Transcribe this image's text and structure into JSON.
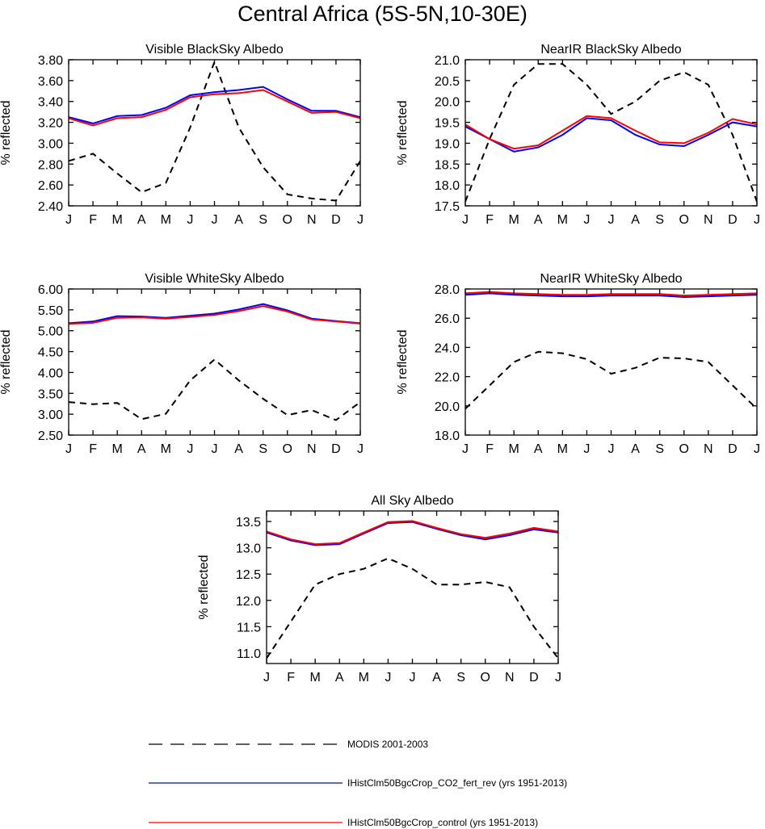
{
  "page_title": "Central Africa (5S-5N,10-30E)",
  "legend": {
    "entries": [
      {
        "label": "MODIS 2001-2003",
        "color": "#000000",
        "dash": true
      },
      {
        "label": "IHistClm50BgcCrop_CO2_fert_rev (yrs 1951-2013)",
        "color": "#0000ff",
        "dash": false
      },
      {
        "label": "IHistClm50BgcCrop_control (yrs 1951-2013)",
        "color": "#ff0000",
        "dash": false
      }
    ]
  },
  "colors": {
    "modis": "#000000",
    "co2_fert_rev": "#0000ff",
    "control": "#ff0000"
  },
  "chart_data": [
    {
      "type": "line",
      "title": "Visible BlackSky Albedo",
      "ylabel": "% reflected",
      "categories": [
        "J",
        "F",
        "M",
        "A",
        "M",
        "J",
        "J",
        "A",
        "S",
        "O",
        "N",
        "D",
        "J"
      ],
      "ylim": [
        2.4,
        3.8
      ],
      "yticks": [
        "2.40",
        "2.60",
        "2.80",
        "3.00",
        "3.20",
        "3.40",
        "3.60",
        "3.80"
      ],
      "series": [
        {
          "name": "MODIS 2001-2003",
          "values": [
            2.83,
            2.9,
            2.71,
            2.53,
            2.62,
            3.15,
            3.78,
            3.15,
            2.77,
            2.51,
            2.47,
            2.45,
            2.83
          ]
        },
        {
          "name": "IHistClm50BgcCrop_CO2_fert_rev (yrs 1951-2013)",
          "values": [
            3.25,
            3.19,
            3.26,
            3.27,
            3.34,
            3.46,
            3.49,
            3.51,
            3.54,
            3.42,
            3.31,
            3.31,
            3.25
          ]
        },
        {
          "name": "IHistClm50BgcCrop_control (yrs 1951-2013)",
          "values": [
            3.24,
            3.17,
            3.24,
            3.25,
            3.32,
            3.44,
            3.47,
            3.48,
            3.51,
            3.4,
            3.29,
            3.3,
            3.24
          ]
        }
      ]
    },
    {
      "type": "line",
      "title": "NearIR BlackSky Albedo",
      "ylabel": "% reflected",
      "categories": [
        "J",
        "F",
        "M",
        "A",
        "M",
        "J",
        "J",
        "A",
        "S",
        "O",
        "N",
        "D",
        "J"
      ],
      "ylim": [
        17.5,
        21.0
      ],
      "yticks": [
        "17.5",
        "18.0",
        "18.5",
        "19.0",
        "19.5",
        "20.0",
        "20.5",
        "21.0"
      ],
      "series": [
        {
          "name": "MODIS 2001-2003",
          "values": [
            17.6,
            19.1,
            20.4,
            20.9,
            20.9,
            20.4,
            19.7,
            20.0,
            20.5,
            20.7,
            20.4,
            19.2,
            17.6
          ]
        },
        {
          "name": "IHistClm50BgcCrop_CO2_fert_rev (yrs 1951-2013)",
          "values": [
            19.4,
            19.1,
            18.8,
            18.9,
            19.2,
            19.6,
            19.55,
            19.2,
            18.97,
            18.93,
            19.2,
            19.5,
            19.4
          ]
        },
        {
          "name": "IHistClm50BgcCrop_control (yrs 1951-2013)",
          "values": [
            19.45,
            19.1,
            18.87,
            18.95,
            19.3,
            19.65,
            19.6,
            19.3,
            19.02,
            19.0,
            19.25,
            19.58,
            19.45
          ]
        }
      ]
    },
    {
      "type": "line",
      "title": "Visible WhiteSky Albedo",
      "ylabel": "% reflected",
      "categories": [
        "J",
        "F",
        "M",
        "A",
        "M",
        "J",
        "J",
        "A",
        "S",
        "O",
        "N",
        "D",
        "J"
      ],
      "ylim": [
        2.5,
        6.0
      ],
      "yticks": [
        "2.50",
        "3.00",
        "3.50",
        "4.00",
        "4.50",
        "5.00",
        "5.50",
        "6.00"
      ],
      "series": [
        {
          "name": "MODIS 2001-2003",
          "values": [
            3.29,
            3.24,
            3.27,
            2.88,
            3.01,
            3.81,
            4.31,
            3.81,
            3.37,
            2.98,
            3.1,
            2.86,
            3.29
          ]
        },
        {
          "name": "IHistClm50BgcCrop_CO2_fert_rev (yrs 1951-2013)",
          "values": [
            5.18,
            5.22,
            5.35,
            5.34,
            5.31,
            5.36,
            5.41,
            5.51,
            5.64,
            5.49,
            5.29,
            5.23,
            5.18
          ]
        },
        {
          "name": "IHistClm50BgcCrop_control (yrs 1951-2013)",
          "values": [
            5.16,
            5.19,
            5.31,
            5.32,
            5.29,
            5.33,
            5.38,
            5.47,
            5.59,
            5.46,
            5.27,
            5.22,
            5.17
          ]
        }
      ]
    },
    {
      "type": "line",
      "title": "NearIR WhiteSky Albedo",
      "ylabel": "% reflected",
      "categories": [
        "J",
        "F",
        "M",
        "A",
        "M",
        "J",
        "J",
        "A",
        "S",
        "O",
        "N",
        "D",
        "J"
      ],
      "ylim": [
        18.0,
        28.0
      ],
      "yticks": [
        "18.0",
        "20.0",
        "22.0",
        "24.0",
        "26.0",
        "28.0"
      ],
      "series": [
        {
          "name": "MODIS 2001-2003",
          "values": [
            19.8,
            21.4,
            23.0,
            23.7,
            23.6,
            23.2,
            22.2,
            22.6,
            23.3,
            23.25,
            23.0,
            21.4,
            19.8
          ]
        },
        {
          "name": "IHistClm50BgcCrop_CO2_fert_rev (yrs 1951-2013)",
          "values": [
            27.6,
            27.7,
            27.6,
            27.55,
            27.5,
            27.5,
            27.55,
            27.55,
            27.55,
            27.45,
            27.5,
            27.55,
            27.6
          ]
        },
        {
          "name": "IHistClm50BgcCrop_control (yrs 1951-2013)",
          "values": [
            27.7,
            27.8,
            27.7,
            27.65,
            27.6,
            27.6,
            27.65,
            27.65,
            27.65,
            27.55,
            27.6,
            27.65,
            27.7
          ]
        }
      ]
    },
    {
      "type": "line",
      "title": "All Sky Albedo",
      "ylabel": "% reflected",
      "categories": [
        "J",
        "F",
        "M",
        "A",
        "M",
        "J",
        "J",
        "A",
        "S",
        "O",
        "N",
        "D",
        "J"
      ],
      "ylim": [
        10.8,
        13.7
      ],
      "yticks": [
        "11.0",
        "11.5",
        "12.0",
        "12.5",
        "13.0",
        "13.5"
      ],
      "series": [
        {
          "name": "MODIS 2001-2003",
          "values": [
            10.9,
            11.6,
            12.3,
            12.5,
            12.6,
            12.8,
            12.6,
            12.3,
            12.3,
            12.35,
            12.25,
            11.5,
            10.9
          ]
        },
        {
          "name": "IHistClm50BgcCrop_CO2_fert_rev (yrs 1951-2013)",
          "values": [
            13.29,
            13.14,
            13.05,
            13.07,
            13.27,
            13.47,
            13.49,
            13.36,
            13.24,
            13.16,
            13.24,
            13.35,
            13.29
          ]
        },
        {
          "name": "IHistClm50BgcCrop_control (yrs 1951-2013)",
          "values": [
            13.31,
            13.16,
            13.07,
            13.09,
            13.29,
            13.49,
            13.51,
            13.38,
            13.26,
            13.19,
            13.27,
            13.38,
            13.31
          ]
        }
      ]
    }
  ]
}
